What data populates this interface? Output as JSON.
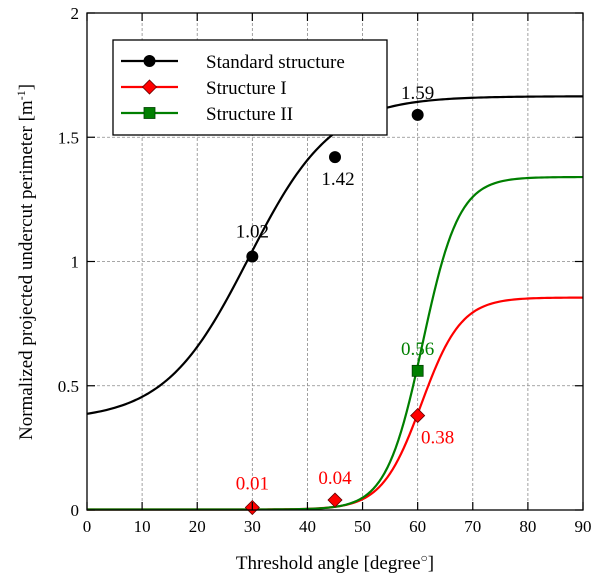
{
  "chart_data": {
    "type": "line",
    "title": "",
    "xlabel": "Threshold angle [degree",
    "xlabel_super": "○",
    "xlabel_suffix": "]",
    "ylabel": "Normalized projected undercut perimeter [m",
    "ylabel_super": "-1",
    "ylabel_suffix": "]",
    "xlim": [
      0,
      90
    ],
    "ylim": [
      0,
      2
    ],
    "xticks": [
      0,
      10,
      20,
      30,
      40,
      50,
      60,
      70,
      80,
      90
    ],
    "yticks": [
      0,
      0.5,
      1,
      1.5,
      2
    ],
    "ytick_labels": [
      "0",
      "0.5",
      "1",
      "1.5",
      "2"
    ],
    "grid": true,
    "legend_position": "top-left",
    "series": [
      {
        "name": "Standard structure",
        "color": "#000000",
        "marker": "circle",
        "curve": {
          "base": 0.36,
          "top": 1.665,
          "mid": 29.3,
          "width": 7.6
        },
        "points": [
          {
            "x": 30,
            "y": 1.02,
            "label": "1.02"
          },
          {
            "x": 45,
            "y": 1.42,
            "label": "1.42"
          },
          {
            "x": 60,
            "y": 1.59,
            "label": "1.59"
          }
        ]
      },
      {
        "name": "Structure I",
        "color": "#ff0000",
        "marker": "diamond",
        "curve": {
          "base": 0.002,
          "top": 0.855,
          "mid": 60.7,
          "width": 3.6
        },
        "points": [
          {
            "x": 30,
            "y": 0.01,
            "label": "0.01"
          },
          {
            "x": 45,
            "y": 0.04,
            "label": "0.04"
          },
          {
            "x": 60,
            "y": 0.38,
            "label": "0.38"
          }
        ]
      },
      {
        "name": "Structure II",
        "color": "#007f00",
        "marker": "square",
        "curve": {
          "base": 0.002,
          "top": 1.34,
          "mid": 60.9,
          "width": 3.3
        },
        "points": [
          {
            "x": 60,
            "y": 0.56,
            "label": "0.56"
          }
        ]
      }
    ]
  }
}
